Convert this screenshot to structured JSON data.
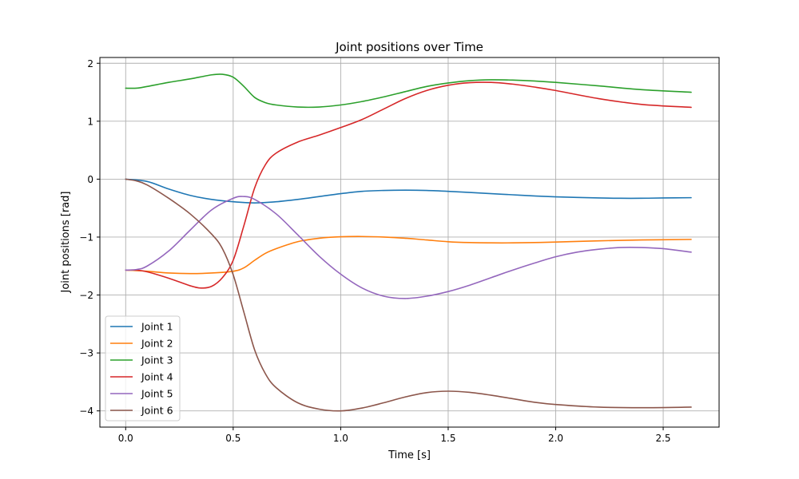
{
  "chart_data": {
    "type": "line",
    "title": "Joint positions over Time",
    "xlabel": "Time [s]",
    "ylabel": "Joint positions [rad]",
    "xlim": [
      -0.12,
      2.76
    ],
    "ylim": [
      -4.28,
      2.1
    ],
    "xticks": [
      0.0,
      0.5,
      1.0,
      1.5,
      2.0,
      2.5
    ],
    "xtick_labels": [
      "0.0",
      "0.5",
      "1.0",
      "1.5",
      "2.0",
      "2.5"
    ],
    "yticks": [
      2,
      1,
      0,
      -1,
      -2,
      -3,
      -4
    ],
    "ytick_labels": [
      "2",
      "1",
      "0",
      "−1",
      "−2",
      "−3",
      "−4"
    ],
    "grid": true,
    "legend_position": "lower-left",
    "series": [
      {
        "name": "Joint 1",
        "color": "#1f77b4",
        "points": [
          [
            0.0,
            0.0
          ],
          [
            0.1,
            -0.04
          ],
          [
            0.2,
            -0.17
          ],
          [
            0.3,
            -0.28
          ],
          [
            0.4,
            -0.35
          ],
          [
            0.5,
            -0.39
          ],
          [
            0.6,
            -0.41
          ],
          [
            0.7,
            -0.39
          ],
          [
            0.8,
            -0.35
          ],
          [
            0.9,
            -0.3
          ],
          [
            1.0,
            -0.25
          ],
          [
            1.1,
            -0.21
          ],
          [
            1.2,
            -0.195
          ],
          [
            1.3,
            -0.19
          ],
          [
            1.4,
            -0.195
          ],
          [
            1.5,
            -0.21
          ],
          [
            1.6,
            -0.23
          ],
          [
            1.7,
            -0.25
          ],
          [
            1.8,
            -0.27
          ],
          [
            1.9,
            -0.29
          ],
          [
            2.0,
            -0.305
          ],
          [
            2.2,
            -0.325
          ],
          [
            2.3,
            -0.33
          ],
          [
            2.4,
            -0.33
          ],
          [
            2.5,
            -0.325
          ],
          [
            2.63,
            -0.32
          ]
        ]
      },
      {
        "name": "Joint 2",
        "color": "#ff7f0e",
        "points": [
          [
            0.0,
            -1.57
          ],
          [
            0.1,
            -1.59
          ],
          [
            0.2,
            -1.62
          ],
          [
            0.3,
            -1.63
          ],
          [
            0.4,
            -1.62
          ],
          [
            0.5,
            -1.59
          ],
          [
            0.55,
            -1.53
          ],
          [
            0.6,
            -1.4
          ],
          [
            0.65,
            -1.28
          ],
          [
            0.7,
            -1.2
          ],
          [
            0.8,
            -1.08
          ],
          [
            0.9,
            -1.02
          ],
          [
            1.0,
            -0.995
          ],
          [
            1.1,
            -0.99
          ],
          [
            1.2,
            -1.0
          ],
          [
            1.3,
            -1.02
          ],
          [
            1.4,
            -1.05
          ],
          [
            1.5,
            -1.08
          ],
          [
            1.6,
            -1.095
          ],
          [
            1.7,
            -1.1
          ],
          [
            1.8,
            -1.1
          ],
          [
            1.9,
            -1.095
          ],
          [
            2.0,
            -1.085
          ],
          [
            2.2,
            -1.065
          ],
          [
            2.4,
            -1.05
          ],
          [
            2.63,
            -1.04
          ]
        ]
      },
      {
        "name": "Joint 3",
        "color": "#2ca02c",
        "points": [
          [
            0.0,
            1.57
          ],
          [
            0.05,
            1.57
          ],
          [
            0.1,
            1.6
          ],
          [
            0.2,
            1.67
          ],
          [
            0.3,
            1.73
          ],
          [
            0.4,
            1.8
          ],
          [
            0.45,
            1.81
          ],
          [
            0.5,
            1.76
          ],
          [
            0.55,
            1.6
          ],
          [
            0.6,
            1.41
          ],
          [
            0.65,
            1.32
          ],
          [
            0.7,
            1.28
          ],
          [
            0.8,
            1.245
          ],
          [
            0.9,
            1.245
          ],
          [
            1.0,
            1.28
          ],
          [
            1.1,
            1.34
          ],
          [
            1.2,
            1.42
          ],
          [
            1.3,
            1.51
          ],
          [
            1.4,
            1.6
          ],
          [
            1.5,
            1.66
          ],
          [
            1.6,
            1.7
          ],
          [
            1.7,
            1.715
          ],
          [
            1.8,
            1.71
          ],
          [
            1.9,
            1.695
          ],
          [
            2.0,
            1.67
          ],
          [
            2.2,
            1.61
          ],
          [
            2.4,
            1.545
          ],
          [
            2.63,
            1.5
          ]
        ]
      },
      {
        "name": "Joint 4",
        "color": "#d62728",
        "points": [
          [
            0.0,
            -1.57
          ],
          [
            0.05,
            -1.57
          ],
          [
            0.1,
            -1.6
          ],
          [
            0.2,
            -1.71
          ],
          [
            0.3,
            -1.84
          ],
          [
            0.35,
            -1.88
          ],
          [
            0.4,
            -1.85
          ],
          [
            0.45,
            -1.7
          ],
          [
            0.5,
            -1.4
          ],
          [
            0.55,
            -0.8
          ],
          [
            0.6,
            -0.15
          ],
          [
            0.65,
            0.25
          ],
          [
            0.7,
            0.45
          ],
          [
            0.8,
            0.64
          ],
          [
            0.9,
            0.76
          ],
          [
            1.0,
            0.89
          ],
          [
            1.1,
            1.03
          ],
          [
            1.2,
            1.21
          ],
          [
            1.3,
            1.39
          ],
          [
            1.4,
            1.53
          ],
          [
            1.5,
            1.62
          ],
          [
            1.6,
            1.665
          ],
          [
            1.7,
            1.67
          ],
          [
            1.8,
            1.64
          ],
          [
            1.9,
            1.59
          ],
          [
            2.0,
            1.53
          ],
          [
            2.2,
            1.39
          ],
          [
            2.4,
            1.29
          ],
          [
            2.63,
            1.24
          ]
        ]
      },
      {
        "name": "Joint 5",
        "color": "#9467bd",
        "points": [
          [
            0.0,
            -1.57
          ],
          [
            0.05,
            -1.56
          ],
          [
            0.1,
            -1.5
          ],
          [
            0.2,
            -1.24
          ],
          [
            0.3,
            -0.88
          ],
          [
            0.4,
            -0.53
          ],
          [
            0.5,
            -0.33
          ],
          [
            0.55,
            -0.3
          ],
          [
            0.6,
            -0.35
          ],
          [
            0.7,
            -0.6
          ],
          [
            0.8,
            -0.96
          ],
          [
            0.9,
            -1.33
          ],
          [
            1.0,
            -1.64
          ],
          [
            1.1,
            -1.88
          ],
          [
            1.2,
            -2.02
          ],
          [
            1.3,
            -2.06
          ],
          [
            1.4,
            -2.02
          ],
          [
            1.5,
            -1.94
          ],
          [
            1.6,
            -1.83
          ],
          [
            1.7,
            -1.7
          ],
          [
            1.8,
            -1.57
          ],
          [
            1.9,
            -1.45
          ],
          [
            2.0,
            -1.34
          ],
          [
            2.1,
            -1.26
          ],
          [
            2.2,
            -1.21
          ],
          [
            2.3,
            -1.18
          ],
          [
            2.4,
            -1.18
          ],
          [
            2.5,
            -1.2
          ],
          [
            2.63,
            -1.26
          ]
        ]
      },
      {
        "name": "Joint 6",
        "color": "#8c564b",
        "points": [
          [
            0.0,
            0.0
          ],
          [
            0.05,
            -0.03
          ],
          [
            0.1,
            -0.1
          ],
          [
            0.2,
            -0.33
          ],
          [
            0.3,
            -0.6
          ],
          [
            0.4,
            -0.95
          ],
          [
            0.45,
            -1.2
          ],
          [
            0.5,
            -1.65
          ],
          [
            0.55,
            -2.3
          ],
          [
            0.6,
            -2.95
          ],
          [
            0.65,
            -3.36
          ],
          [
            0.7,
            -3.6
          ],
          [
            0.8,
            -3.86
          ],
          [
            0.9,
            -3.97
          ],
          [
            1.0,
            -4.0
          ],
          [
            1.1,
            -3.95
          ],
          [
            1.2,
            -3.86
          ],
          [
            1.3,
            -3.76
          ],
          [
            1.4,
            -3.685
          ],
          [
            1.5,
            -3.66
          ],
          [
            1.6,
            -3.68
          ],
          [
            1.7,
            -3.73
          ],
          [
            1.8,
            -3.79
          ],
          [
            1.9,
            -3.85
          ],
          [
            2.0,
            -3.89
          ],
          [
            2.2,
            -3.935
          ],
          [
            2.4,
            -3.945
          ],
          [
            2.63,
            -3.935
          ]
        ]
      }
    ]
  }
}
